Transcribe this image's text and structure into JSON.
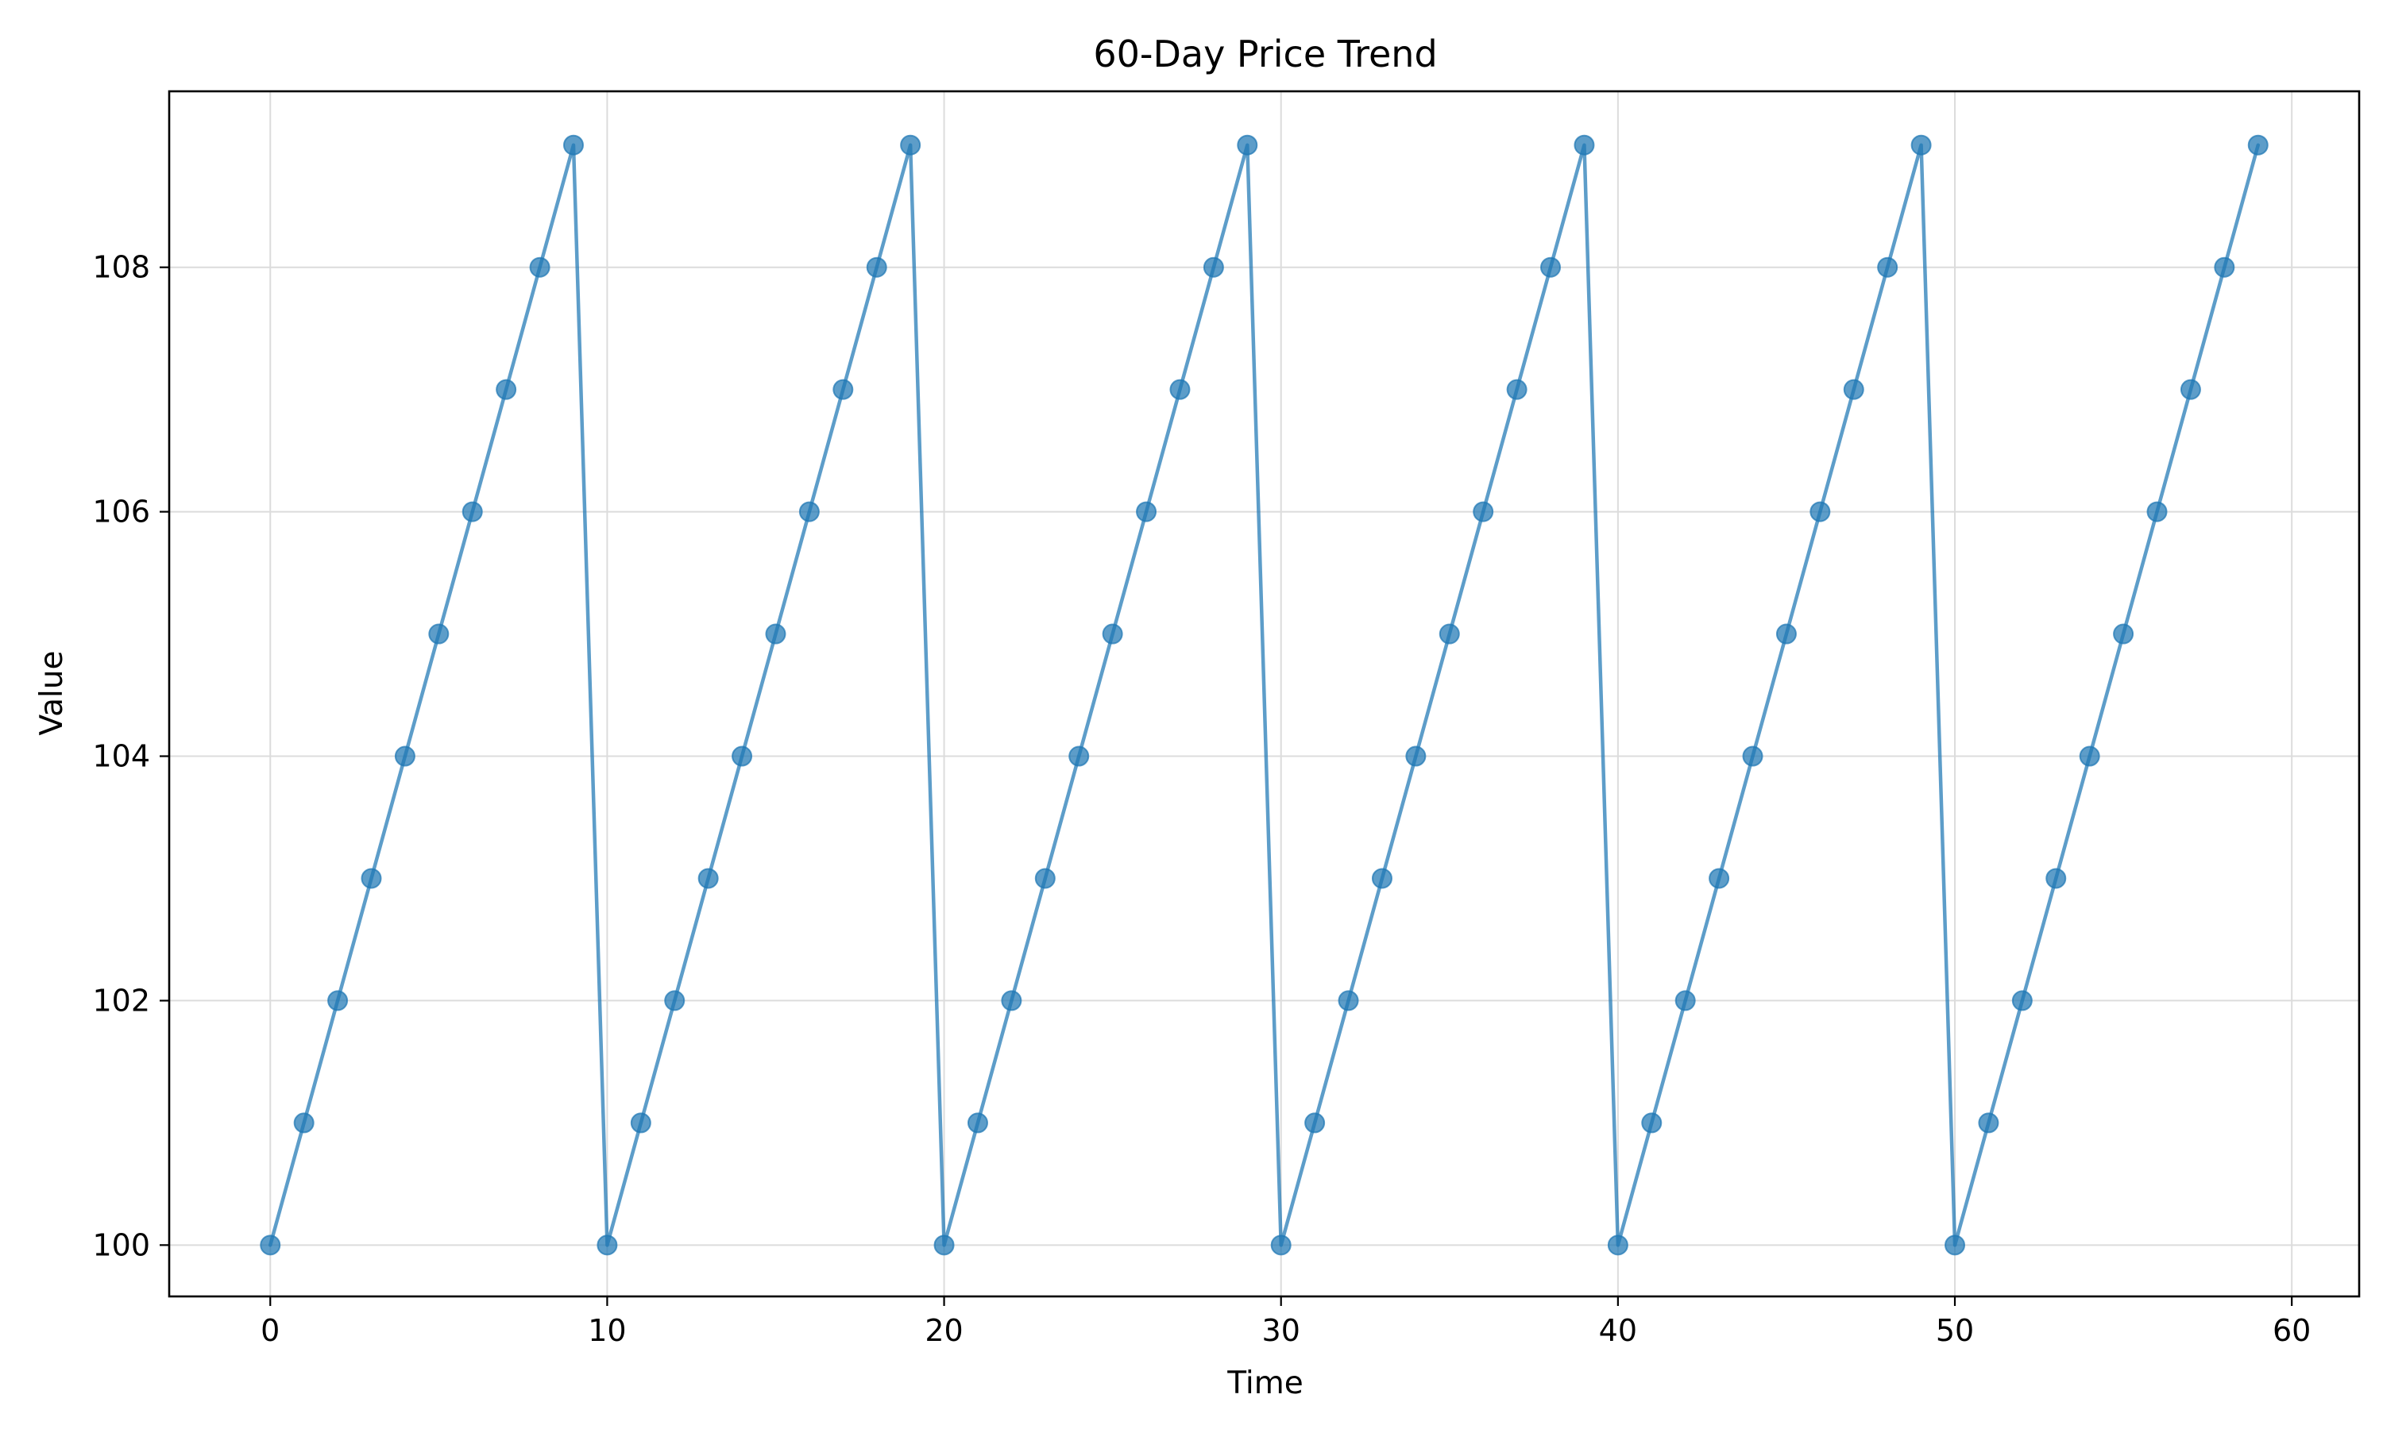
{
  "chart_data": {
    "type": "line",
    "title": "60-Day Price Trend",
    "xlabel": "Time",
    "ylabel": "Value",
    "xlim": [
      -3,
      62
    ],
    "ylim": [
      99.58,
      109.44
    ],
    "xticks": [
      0,
      10,
      20,
      30,
      40,
      50,
      60
    ],
    "yticks": [
      100,
      102,
      104,
      106,
      108
    ],
    "grid": true,
    "legend": "none",
    "colors": {
      "series": "#1f77b4",
      "grid": "#dcdcdc",
      "frame": "#000000"
    },
    "series": [
      {
        "marker": "circle",
        "x": [
          0,
          1,
          2,
          3,
          4,
          5,
          6,
          7,
          8,
          9,
          10,
          11,
          12,
          13,
          14,
          15,
          16,
          17,
          18,
          19,
          20,
          21,
          22,
          23,
          24,
          25,
          26,
          27,
          28,
          29,
          30,
          31,
          32,
          33,
          34,
          35,
          36,
          37,
          38,
          39,
          40,
          41,
          42,
          43,
          44,
          45,
          46,
          47,
          48,
          49,
          50,
          51,
          52,
          53,
          54,
          55,
          56,
          57,
          58,
          59
        ],
        "values": [
          100,
          101,
          102,
          103,
          104,
          105,
          106,
          107,
          108,
          109,
          100,
          101,
          102,
          103,
          104,
          105,
          106,
          107,
          108,
          109,
          100,
          101,
          102,
          103,
          104,
          105,
          106,
          107,
          108,
          109,
          100,
          101,
          102,
          103,
          104,
          105,
          106,
          107,
          108,
          109,
          100,
          101,
          102,
          103,
          104,
          105,
          106,
          107,
          108,
          109,
          100,
          101,
          102,
          103,
          104,
          105,
          106,
          107,
          108,
          109
        ]
      }
    ]
  }
}
